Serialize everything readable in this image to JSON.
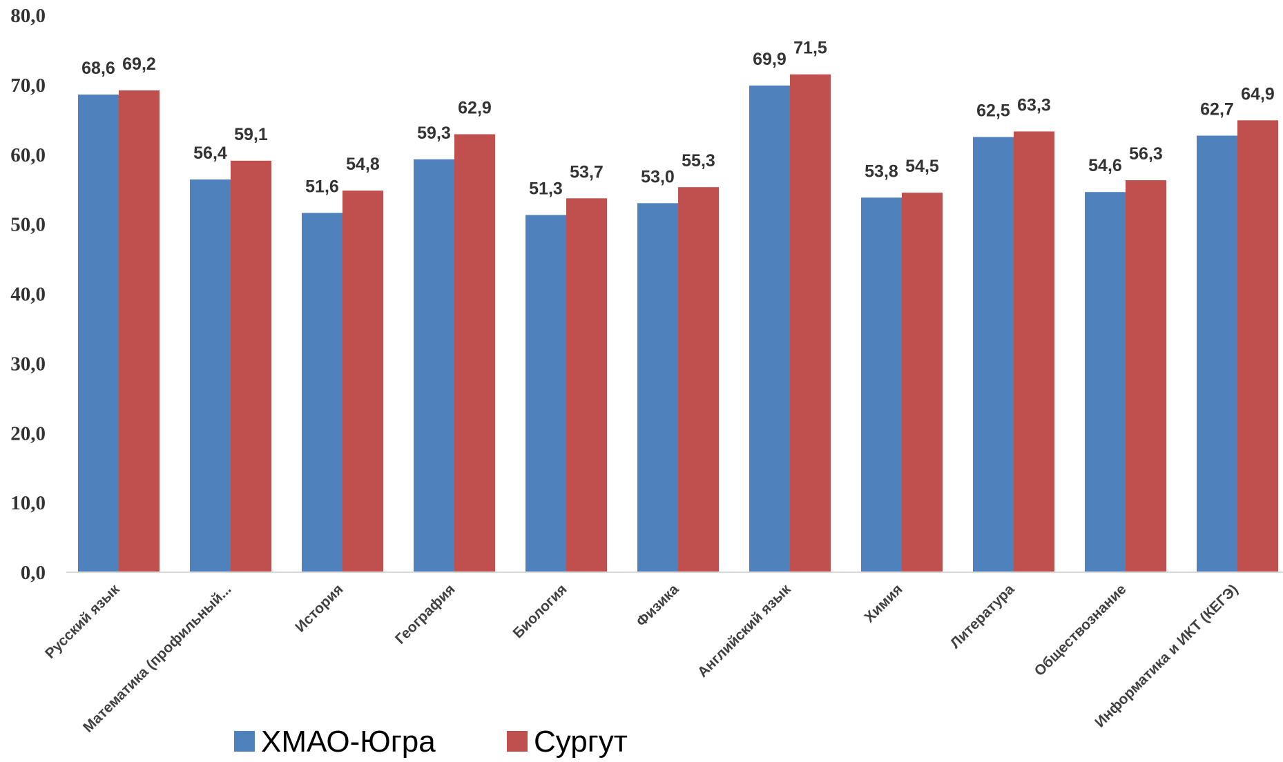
{
  "chart_data": {
    "type": "bar",
    "title": "",
    "xlabel": "",
    "ylabel": "",
    "ylim": [
      0,
      80
    ],
    "yticks": [
      "0,0",
      "10,0",
      "20,0",
      "30,0",
      "40,0",
      "50,0",
      "60,0",
      "70,0",
      "80,0"
    ],
    "grid": false,
    "legend_position": "bottom",
    "categories": [
      "Русский язык",
      "Математика (профильный...",
      "История",
      "География",
      "Биология",
      "Физика",
      "Английский язык",
      "Химия",
      "Литература",
      "Обществознание",
      "Информатика и ИКТ (КЕГЭ)"
    ],
    "series": [
      {
        "name": "ХМАО-Югра",
        "color": "#4f81bd",
        "values": [
          68.6,
          56.4,
          51.6,
          59.3,
          51.3,
          53.0,
          69.9,
          53.8,
          62.5,
          54.6,
          62.7
        ],
        "labels": [
          "68,6",
          "56,4",
          "51,6",
          "59,3",
          "51,3",
          "53,0",
          "69,9",
          "53,8",
          "62,5",
          "54,6",
          "62,7"
        ]
      },
      {
        "name": "Сургут",
        "color": "#c0504d",
        "values": [
          69.2,
          59.1,
          54.8,
          62.9,
          53.7,
          55.3,
          71.5,
          54.5,
          63.3,
          56.3,
          64.9
        ],
        "labels": [
          "69,2",
          "59,1",
          "54,8",
          "62,9",
          "53,7",
          "55,3",
          "71,5",
          "54,5",
          "63,3",
          "56,3",
          "64,9"
        ]
      }
    ]
  }
}
